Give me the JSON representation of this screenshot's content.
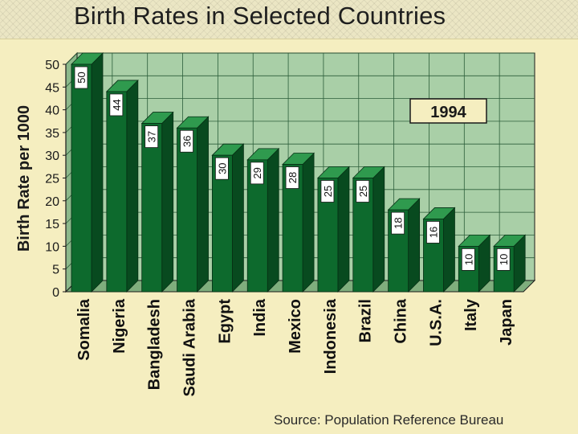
{
  "chart_data": {
    "type": "bar",
    "title": "Birth Rates in Selected Countries",
    "ylabel": "Birth Rate per 1000",
    "xlabel": "",
    "ylim": [
      0,
      50
    ],
    "yticks": [
      0,
      5,
      10,
      15,
      20,
      25,
      30,
      35,
      40,
      45,
      50
    ],
    "annotation": "1994",
    "source": "Source: Population Reference Bureau",
    "categories": [
      "Somalia",
      "Nigeria",
      "Bangladesh",
      "Saudi Arabia",
      "Egypt",
      "India",
      "Mexico",
      "Indonesia",
      "Brazil",
      "China",
      "U.S.A.",
      "Italy",
      "Japan"
    ],
    "values": [
      50,
      44,
      37,
      36,
      30,
      29,
      28,
      25,
      25,
      18,
      16,
      10,
      10
    ],
    "colors": {
      "plot_bg": "#a9cfa7",
      "wall_left": "#8cb98b",
      "floor": "#7fae7d",
      "bar_front": "#0d6a2d",
      "bar_side": "#084a1f",
      "bar_top": "#2f9a4e",
      "label_box": "#ffffff",
      "annotation_box": "#f5eec0"
    }
  }
}
